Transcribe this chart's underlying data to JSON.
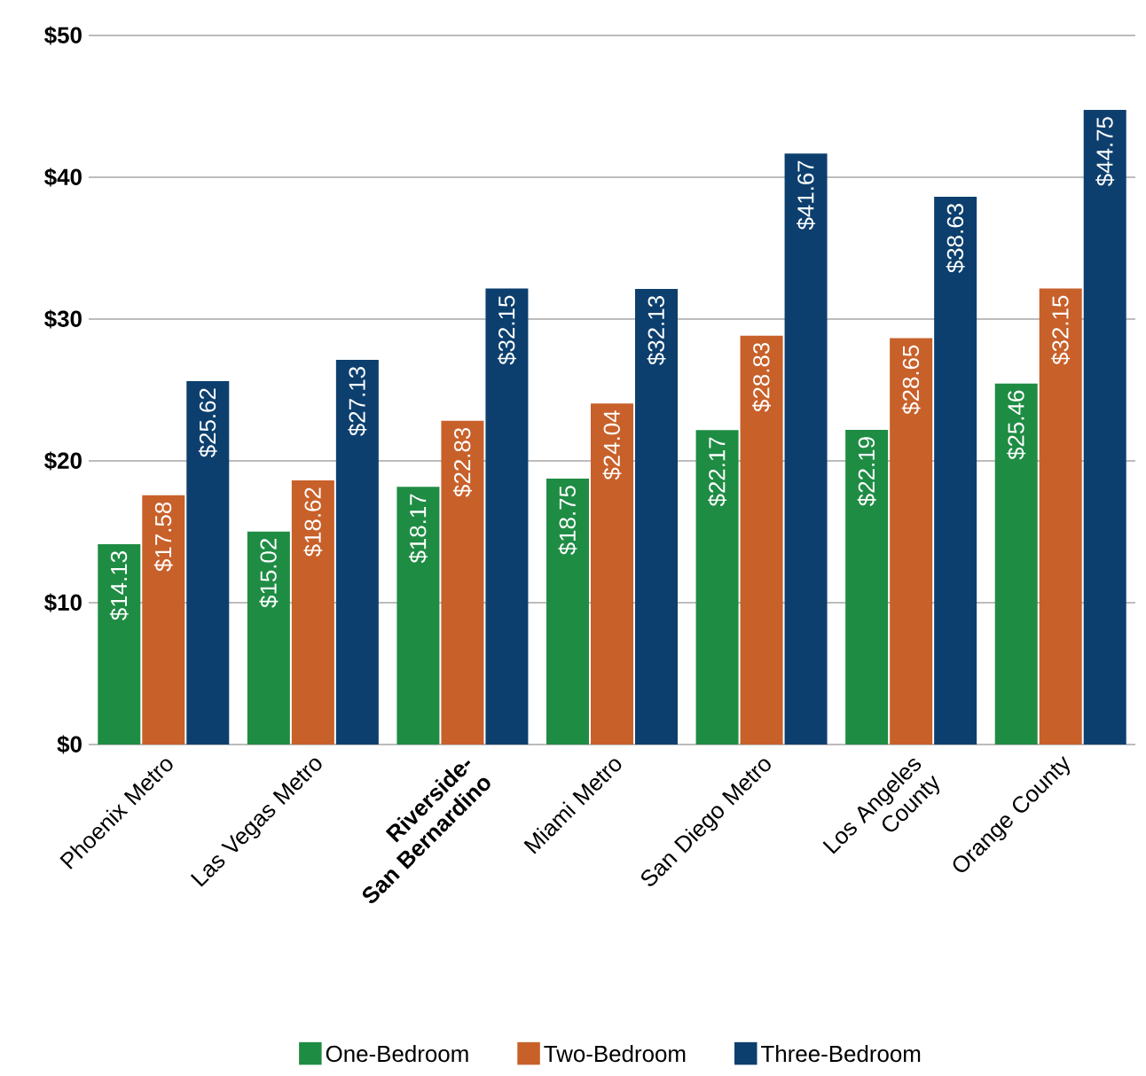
{
  "chart_data": {
    "type": "bar",
    "categories": [
      "Phoenix Metro",
      "Las Vegas Metro",
      "**Riverside-San Bernardino**",
      "Miami Metro",
      "San Diego Metro",
      "Los Angeles County",
      "Orange County"
    ],
    "series": [
      {
        "name": "One-Bedroom",
        "color": "#1f8c44",
        "values": [
          14.13,
          15.02,
          18.17,
          18.75,
          22.17,
          22.19,
          25.46
        ],
        "value_labels": [
          "$14.13",
          "$15.02",
          "$18.17",
          "$18.75",
          "$22.17",
          "$22.19",
          "$25.46"
        ]
      },
      {
        "name": "Two-Bedroom",
        "color": "#c8602a",
        "values": [
          17.58,
          18.62,
          22.83,
          24.04,
          28.83,
          28.65,
          32.15
        ],
        "value_labels": [
          "$17.58",
          "$18.62",
          "$22.83",
          "$24.04",
          "$28.83",
          "$28.65",
          "$32.15"
        ]
      },
      {
        "name": "Three-Bedroom",
        "color": "#0d3f6e",
        "values": [
          25.62,
          27.13,
          32.15,
          32.13,
          41.67,
          38.63,
          44.75
        ],
        "value_labels": [
          "$25.62",
          "$27.13",
          "$32.15",
          "$32.13",
          "$41.67",
          "$38.63",
          "$44.75"
        ]
      }
    ],
    "ylim": [
      0,
      50
    ],
    "yticks": [
      {
        "value": 0,
        "label": "$0"
      },
      {
        "value": 10,
        "label": "$10"
      },
      {
        "value": 20,
        "label": "$20"
      },
      {
        "value": 30,
        "label": "$30"
      },
      {
        "value": 40,
        "label": "$40"
      },
      {
        "value": 50,
        "label": "$50"
      }
    ],
    "grid": "y",
    "legend": "bottom"
  }
}
